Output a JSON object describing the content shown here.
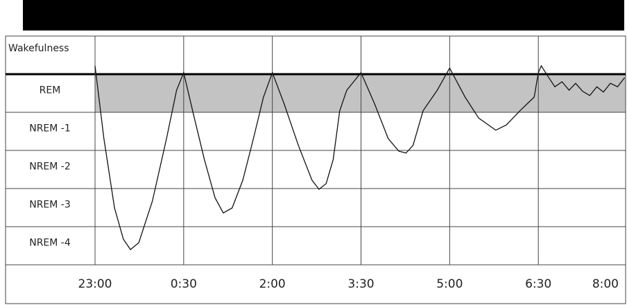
{
  "chart_data": {
    "type": "line",
    "stages": [
      "Wakefulness",
      "REM",
      "NREM -1",
      "NREM -2",
      "NREM -3",
      "NREM -4"
    ],
    "highlight_stage": 1,
    "highlight_color": "#c3c3c3",
    "xlim": [
      0,
      9
    ],
    "xticks": [
      {
        "value": 0,
        "label": "23:00"
      },
      {
        "value": 1.5,
        "label": "0:30"
      },
      {
        "value": 3,
        "label": "2:00"
      },
      {
        "value": 4.5,
        "label": "3:30"
      },
      {
        "value": 6,
        "label": "5:00"
      },
      {
        "value": 7.5,
        "label": "6:30"
      },
      {
        "value": 9,
        "label": "8:00"
      }
    ],
    "ylim": [
      0,
      6
    ],
    "series": [
      {
        "color": "#111111",
        "x": [
          0,
          0.15,
          0.33,
          0.48,
          0.6,
          0.74,
          0.97,
          1.21,
          1.38,
          1.5,
          1.68,
          1.85,
          2.03,
          2.17,
          2.32,
          2.5,
          2.68,
          2.85,
          3,
          3.2,
          3.44,
          3.67,
          3.79,
          3.91,
          4.03,
          4.14,
          4.26,
          4.5,
          4.73,
          4.96,
          5.14,
          5.26,
          5.38,
          5.55,
          5.79,
          6,
          6.26,
          6.49,
          6.78,
          6.96,
          7.19,
          7.43,
          7.5,
          7.55,
          7.66,
          7.78,
          7.9,
          8.02,
          8.13,
          8.25,
          8.37,
          8.49,
          8.6,
          8.72,
          8.84,
          8.96
        ],
        "values": [
          0.78,
          2.69,
          4.51,
          5.33,
          5.6,
          5.42,
          4.33,
          2.69,
          1.42,
          0.96,
          2.15,
          3.24,
          4.24,
          4.64,
          4.51,
          3.78,
          2.69,
          1.6,
          0.96,
          1.78,
          2.87,
          3.78,
          4.02,
          3.87,
          3.24,
          1.96,
          1.42,
          0.96,
          1.78,
          2.69,
          3.02,
          3.07,
          2.87,
          1.96,
          1.42,
          0.84,
          1.6,
          2.15,
          2.47,
          2.33,
          1.96,
          1.6,
          0.96,
          0.78,
          1.05,
          1.33,
          1.2,
          1.42,
          1.24,
          1.45,
          1.56,
          1.33,
          1.47,
          1.24,
          1.33,
          1.09
        ]
      }
    ]
  }
}
